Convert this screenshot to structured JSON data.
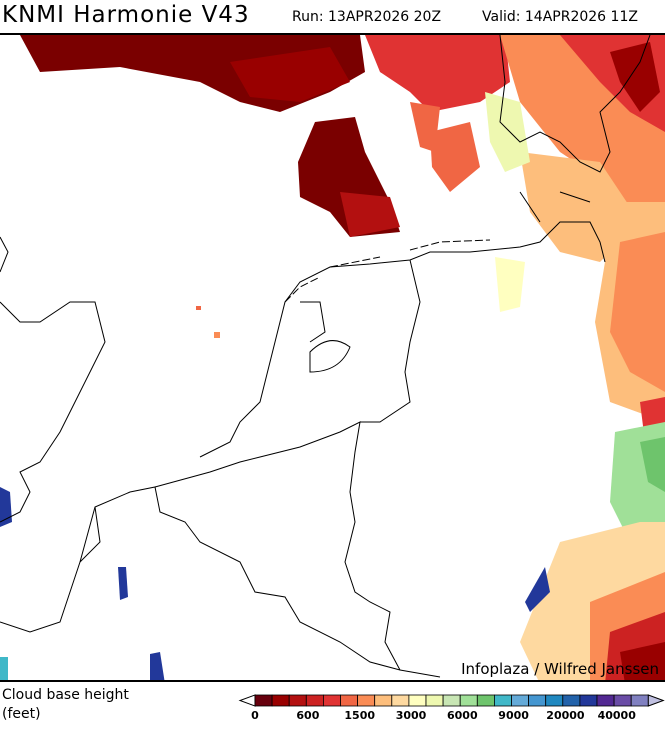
{
  "header": {
    "title": "KNMI Harmonie V43",
    "run": "Run: 13APR2026 20Z",
    "valid": "Valid: 14APR2026 11Z"
  },
  "map": {
    "credit": "Infoplaza / Wilfred Janssen"
  },
  "legend": {
    "label_line1": "Cloud base height",
    "label_line2": "(feet)",
    "colors": [
      "#67000d",
      "#990000",
      "#b31010",
      "#cc2222",
      "#e03333",
      "#f06644",
      "#fa8c55",
      "#fdbe7c",
      "#fed9a0",
      "#ffffc0",
      "#eef8b0",
      "#c8e6b4",
      "#a0e098",
      "#6ec46c",
      "#40b8c8",
      "#64aad8",
      "#4496d0",
      "#2088c0",
      "#2262aa",
      "#22389a",
      "#522892",
      "#6a4ca6",
      "#8080c0"
    ],
    "under_color": "#ffffff",
    "over_color": "#c0c0e0",
    "ticks": [
      "0",
      "600",
      "1500",
      "3000",
      "6000",
      "9000",
      "20000",
      "40000"
    ]
  }
}
